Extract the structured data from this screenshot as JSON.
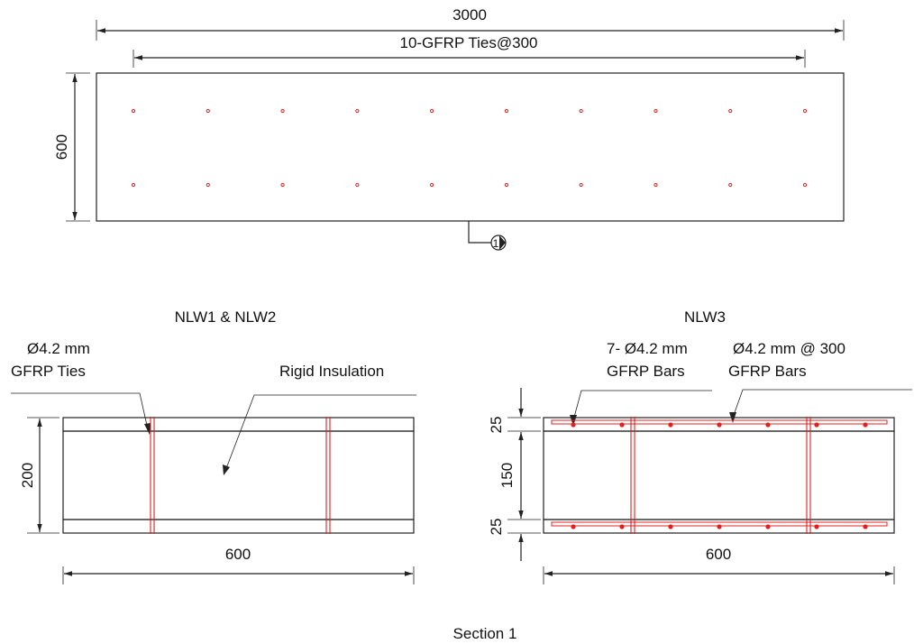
{
  "colors": {
    "line": "#222222",
    "reinforcement": "#e0201f",
    "background": "#ffffff"
  },
  "plan": {
    "length_dim": "3000",
    "ties_dim": "10-GFRP Ties@300",
    "height_dim": "600",
    "section_marker": "1",
    "tie_rows": 2,
    "ties_per_row": 10
  },
  "nlw12": {
    "title": "NLW1 & NLW2",
    "tie_label_line1": "Ø4.2 mm",
    "tie_label_line2": "GFRP Ties",
    "insulation_label": "Rigid Insulation",
    "height_dim": "200",
    "width_dim": "600"
  },
  "nlw3": {
    "title": "NLW3",
    "bars_label_line1": "7- Ø4.2 mm",
    "bars_label_line2": "GFRP Bars",
    "spacing_label_line1": "Ø4.2 mm @ 300",
    "spacing_label_line2": "GFRP Bars",
    "top_dim": "25",
    "mid_dim": "150",
    "bot_dim": "25",
    "width_dim": "600",
    "bars_per_layer": 7
  },
  "section_title": "Section 1"
}
